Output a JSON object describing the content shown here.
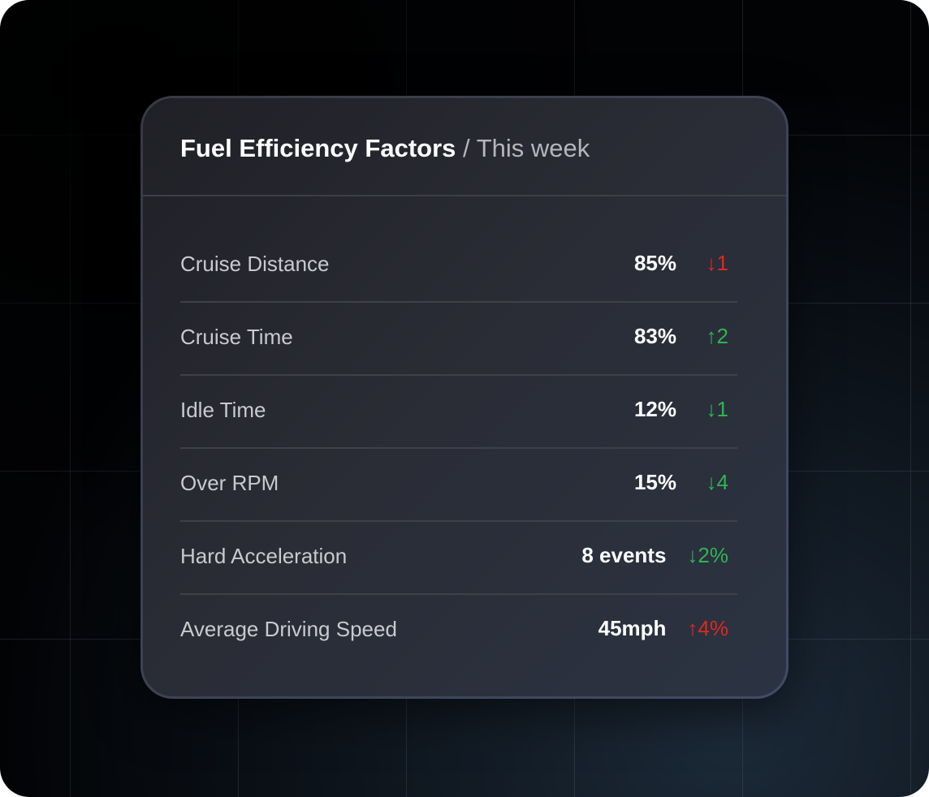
{
  "card": {
    "title": "Fuel Efficiency Factors",
    "separator": "/",
    "period": "This week"
  },
  "colors": {
    "up_good": "#2fb552",
    "down_good": "#2fb552",
    "bad": "#e0281e"
  },
  "rows": [
    {
      "label": "Cruise Distance",
      "value": "85%",
      "delta": "↓1",
      "trend": "down",
      "sentiment": "bad",
      "color": "#e0281e"
    },
    {
      "label": "Cruise Time",
      "value": "83%",
      "delta": "↑2",
      "trend": "up",
      "sentiment": "good",
      "color": "#2fb552"
    },
    {
      "label": "Idle Time",
      "value": "12%",
      "delta": "↓1",
      "trend": "down",
      "sentiment": "good",
      "color": "#2fb552"
    },
    {
      "label": "Over RPM",
      "value": "15%",
      "delta": "↓4",
      "trend": "down",
      "sentiment": "good",
      "color": "#2fb552"
    },
    {
      "label": "Hard Acceleration",
      "value": "8 events",
      "delta": "↓2%",
      "trend": "down",
      "sentiment": "good",
      "color": "#2fb552"
    },
    {
      "label": "Average Driving Speed",
      "value": "45mph",
      "delta": "↑4%",
      "trend": "up",
      "sentiment": "bad",
      "color": "#e0281e"
    }
  ]
}
